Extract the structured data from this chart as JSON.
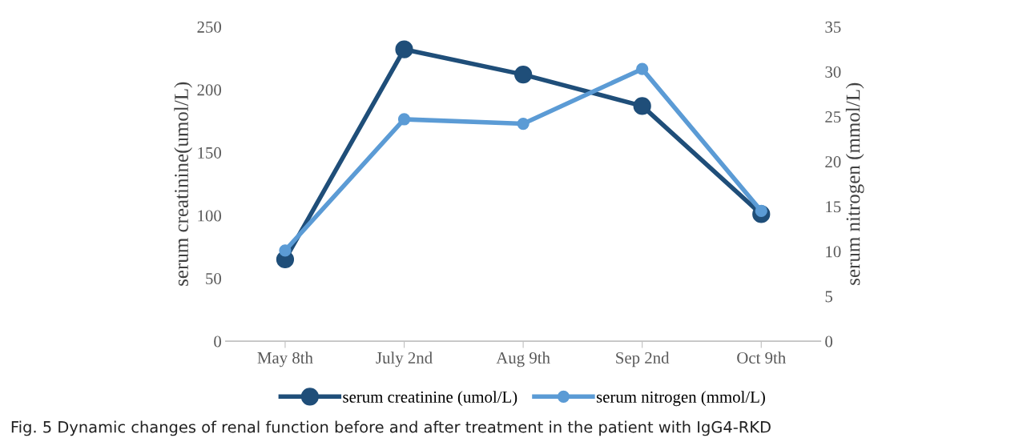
{
  "chart_data": {
    "type": "line",
    "categories": [
      "May 8th",
      "July 2nd",
      "Aug 9th",
      "Sep 2nd",
      "Oct 9th"
    ],
    "series": [
      {
        "name": "serum creatinine (umol/L)",
        "color": "#1f4e79",
        "values": [
          65,
          232,
          212,
          187,
          101
        ]
      },
      {
        "name": "serum nitrogen (mmol/L)",
        "color": "#5b9bd5",
        "axis": "y2",
        "values": [
          10.1,
          24.7,
          24.2,
          30.3,
          14.5
        ]
      }
    ],
    "ylabel": "serum creatinine(umol/L)",
    "y2label": "serum nitrogen (mmol/L)",
    "ylim": [
      0,
      250
    ],
    "yticks": [
      0,
      50,
      100,
      150,
      200,
      250
    ],
    "y2lim": [
      0,
      35
    ],
    "y2ticks": [
      0,
      5,
      10,
      15,
      20,
      25,
      30,
      35
    ],
    "marker": "circle",
    "line_style": "solid",
    "grid": false,
    "legend": "bottom",
    "annotations": [
      "Fig. 5 Dynamic changes of renal function before and after treatment in the patient with IgG4-RKD"
    ]
  }
}
